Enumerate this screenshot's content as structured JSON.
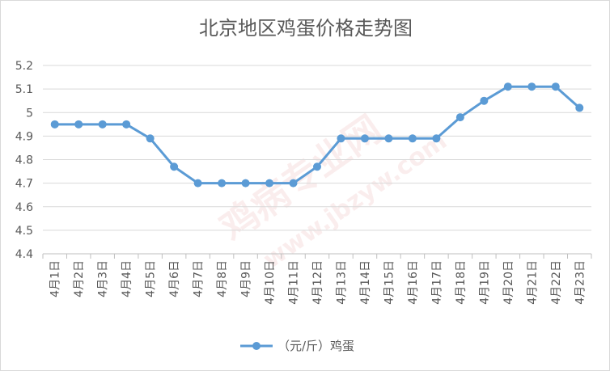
{
  "chart_data": {
    "type": "line",
    "title": "北京地区鸡蛋价格走势图",
    "categories": [
      "4月1日",
      "4月2日",
      "4月3日",
      "4月4日",
      "4月5日",
      "4月6日",
      "4月7日",
      "4月8日",
      "4月9日",
      "4月10日",
      "4月11日",
      "4月12日",
      "4月13日",
      "4月14日",
      "4月15日",
      "4月16日",
      "4月17日",
      "4月18日",
      "4月19日",
      "4月20日",
      "4月21日",
      "4月22日",
      "4月23日"
    ],
    "series": [
      {
        "name": "（元/斤）鸡蛋",
        "values": [
          4.95,
          4.95,
          4.95,
          4.95,
          4.89,
          4.77,
          4.7,
          4.7,
          4.7,
          4.7,
          4.7,
          4.77,
          4.89,
          4.89,
          4.89,
          4.89,
          4.89,
          4.98,
          5.05,
          5.11,
          5.11,
          5.11,
          5.02
        ],
        "color": "#5b9bd5"
      }
    ],
    "ylim": [
      4.4,
      5.2
    ],
    "yticks": [
      "4.4",
      "4.5",
      "4.6",
      "4.7",
      "4.8",
      "4.9",
      "5",
      "5.1",
      "5.2"
    ],
    "grid": true,
    "legend_position": "bottom",
    "xlabel": "",
    "ylabel": ""
  },
  "watermark": {
    "text": "鸡病专业网",
    "url": "www.jbzyw.com"
  }
}
